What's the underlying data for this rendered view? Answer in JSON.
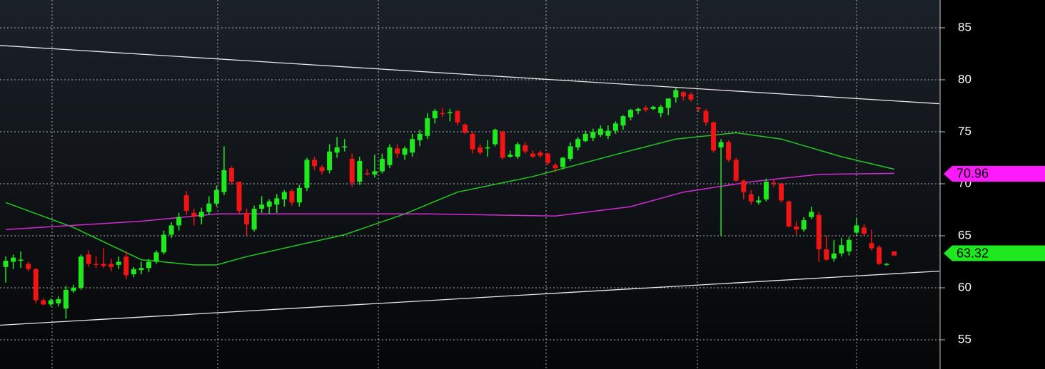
{
  "chart_data": {
    "type": "candlestick",
    "open": [
      62.0,
      62.5,
      62.6,
      62.3,
      61.8,
      58.8,
      58.4,
      58.5,
      58.0,
      59.7,
      60.0,
      63.2,
      62.3,
      62.3,
      62.3,
      62.2,
      63.0,
      61.3,
      61.7,
      61.9,
      62.5,
      63.4,
      65.1,
      66.0,
      68.9,
      67.2,
      66.8,
      67.3,
      68.1,
      69.2,
      71.5,
      70.2,
      67.2,
      65.6,
      67.6,
      67.8,
      68.0,
      68.5,
      69.3,
      68.2,
      69.6,
      72.3,
      71.6,
      71.3,
      73.0,
      73.6,
      72.4,
      70.2,
      71.0,
      70.9,
      71.2,
      71.8,
      73.4,
      72.8,
      73.0,
      74.2,
      74.6,
      76.3,
      76.8,
      76.8,
      77.0,
      75.7,
      74.8,
      73.5,
      73.4,
      73.8,
      75.0,
      72.6,
      72.6,
      73.7,
      72.9,
      73.0,
      72.9,
      71.8,
      71.6,
      72.4,
      73.5,
      74.1,
      74.4,
      74.7,
      74.6,
      75.1,
      75.6,
      76.4,
      77.0,
      77.3,
      77.2,
      76.8,
      77.3,
      78.3,
      78.8,
      78.6,
      77.3,
      77.0,
      75.9,
      73.5,
      74.0,
      72.3,
      70.3,
      69.0,
      68.2,
      68.5,
      70.1,
      70.0,
      68.3,
      65.9,
      65.6,
      66.8,
      67.0,
      63.7,
      62.8,
      63.3,
      63.5,
      65.3,
      65.8,
      64.3,
      63.9,
      62.2,
      63.5
    ],
    "high": [
      63.0,
      63.2,
      63.5,
      62.5,
      61.9,
      59.0,
      59.0,
      59.2,
      60.2,
      60.3,
      63.2,
      63.6,
      63.0,
      63.8,
      62.8,
      63.0,
      63.5,
      62.0,
      62.5,
      62.8,
      63.6,
      65.5,
      66.3,
      67.2,
      69.3,
      67.6,
      67.7,
      68.8,
      69.8,
      73.6,
      71.7,
      70.2,
      67.6,
      67.9,
      68.8,
      68.5,
      69.0,
      69.4,
      69.5,
      69.9,
      72.5,
      72.6,
      71.8,
      73.8,
      74.5,
      74.3,
      72.9,
      72.6,
      71.4,
      72.8,
      72.9,
      73.8,
      73.8,
      73.6,
      74.8,
      75.2,
      76.8,
      77.2,
      77.3,
      77.2,
      77.1,
      75.8,
      75.0,
      73.8,
      74.2,
      75.3,
      75.1,
      73.2,
      74.0,
      74.0,
      73.2,
      73.2,
      73.0,
      72.0,
      72.6,
      74.0,
      74.5,
      75.1,
      75.3,
      75.6,
      75.6,
      76.0,
      76.6,
      77.2,
      77.3,
      77.5,
      77.5,
      77.6,
      78.2,
      79.2,
      78.9,
      78.8,
      77.4,
      77.2,
      76.0,
      74.3,
      74.2,
      72.5,
      70.4,
      69.4,
      68.8,
      70.5,
      70.4,
      70.1,
      68.4,
      66.4,
      66.8,
      67.8,
      67.3,
      65.0,
      64.6,
      64.8,
      64.9,
      66.7,
      66.1,
      65.6,
      64.1,
      62.4,
      63.5
    ],
    "low": [
      60.5,
      61.8,
      61.9,
      61.6,
      58.5,
      58.3,
      58.2,
      58.2,
      57.0,
      59.5,
      59.8,
      62.0,
      61.9,
      61.9,
      61.6,
      61.8,
      60.8,
      61.0,
      61.3,
      61.5,
      62.3,
      63.2,
      64.8,
      65.5,
      67.0,
      66.0,
      66.1,
      67.0,
      67.8,
      68.9,
      69.9,
      67.1,
      65.0,
      65.4,
      67.2,
      67.1,
      67.2,
      67.8,
      67.9,
      67.8,
      69.3,
      71.3,
      70.9,
      71.0,
      72.5,
      73.1,
      69.7,
      69.9,
      70.8,
      70.6,
      71.0,
      71.5,
      72.5,
      72.3,
      72.6,
      73.6,
      74.3,
      75.8,
      76.4,
      76.0,
      75.6,
      74.8,
      72.9,
      72.8,
      72.6,
      73.6,
      72.3,
      72.5,
      72.4,
      72.9,
      72.5,
      72.5,
      71.8,
      71.1,
      71.4,
      72.2,
      73.2,
      74.0,
      74.1,
      74.5,
      74.3,
      74.8,
      75.2,
      76.1,
      76.7,
      76.9,
      77.1,
      76.4,
      76.6,
      77.8,
      78.0,
      77.9,
      76.9,
      75.6,
      73.0,
      65.0,
      72.1,
      70.2,
      68.5,
      68.0,
      68.0,
      68.3,
      69.7,
      68.2,
      65.8,
      65.1,
      65.4,
      66.6,
      62.5,
      62.6,
      62.5,
      63.0,
      63.1,
      65.1,
      65.0,
      63.6,
      62.2,
      62.1,
      63.1
    ],
    "close": [
      62.6,
      62.9,
      62.7,
      61.8,
      58.8,
      58.4,
      58.8,
      58.9,
      59.8,
      60.0,
      63.0,
      62.3,
      62.2,
      62.1,
      62.0,
      62.5,
      61.2,
      61.8,
      61.9,
      62.5,
      63.4,
      65.1,
      66.0,
      66.8,
      67.4,
      66.9,
      67.3,
      68.1,
      69.4,
      71.3,
      70.2,
      67.4,
      66.1,
      67.6,
      68.0,
      68.3,
      68.6,
      69.2,
      68.2,
      69.6,
      72.3,
      71.7,
      71.2,
      73.1,
      73.5,
      73.6,
      70.1,
      72.2,
      70.9,
      71.2,
      72.4,
      73.5,
      72.9,
      73.4,
      74.3,
      74.8,
      76.3,
      77.0,
      76.7,
      76.9,
      75.9,
      74.9,
      73.3,
      73.0,
      73.5,
      75.2,
      72.5,
      72.8,
      73.8,
      73.1,
      72.6,
      72.7,
      72.0,
      71.5,
      72.5,
      73.6,
      74.3,
      74.8,
      75.0,
      75.3,
      75.1,
      75.8,
      76.5,
      77.1,
      77.2,
      77.1,
      77.4,
      77.4,
      78.2,
      79.0,
      78.4,
      78.1,
      77.2,
      75.9,
      73.2,
      74.0,
      72.3,
      70.3,
      69.2,
      68.3,
      68.4,
      70.2,
      70.0,
      68.4,
      65.9,
      65.6,
      66.5,
      67.3,
      63.7,
      62.7,
      63.3,
      64.1,
      64.6,
      66.0,
      65.2,
      63.8,
      62.3,
      62.3,
      63.1
    ],
    "up_color": "#1ee81e",
    "down_color": "#f01414",
    "series": [
      {
        "type": "line",
        "color": "#22c822",
        "x": [
          0,
          9,
          18,
          25,
          28,
          32,
          45,
          53,
          60,
          70,
          82,
          89,
          97,
          103,
          111,
          118
        ],
        "values": [
          68.2,
          65.8,
          62.7,
          62.2,
          62.2,
          63.0,
          65.1,
          67.1,
          69.2,
          70.7,
          73.0,
          74.3,
          74.9,
          74.3,
          72.6,
          71.4
        ]
      },
      {
        "type": "line",
        "color": "#d42ad4",
        "x": [
          0,
          18,
          28,
          56,
          73,
          83,
          90,
          99,
          108,
          118
        ],
        "values": [
          65.6,
          66.4,
          67.1,
          67.1,
          66.9,
          67.8,
          69.2,
          70.2,
          70.9,
          71.0
        ]
      }
    ],
    "trendlines": [
      {
        "x": [
          -0.76,
          124
        ],
        "values": [
          83.3,
          77.7
        ]
      },
      {
        "x": [
          -0.76,
          124
        ],
        "values": [
          56.4,
          61.6
        ]
      }
    ],
    "last_labels": [
      {
        "value": 70.96,
        "color": "#ff1aff"
      },
      {
        "value": 63.32,
        "color": "#1ee81e"
      }
    ],
    "xlim": [
      -0.76,
      124
    ],
    "ylim": [
      52.19,
      87.67
    ],
    "yticks": [
      55,
      60,
      65,
      70,
      75,
      80,
      85
    ],
    "grid": true
  }
}
